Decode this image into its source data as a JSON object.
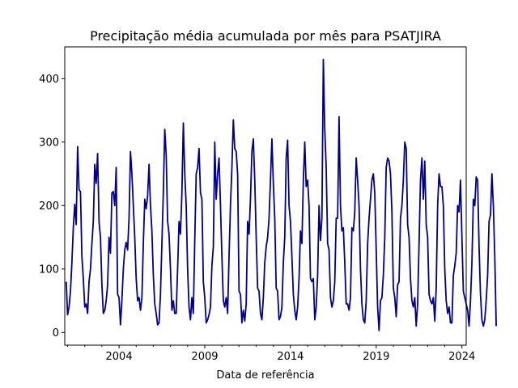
{
  "chart_data": {
    "type": "line",
    "title": "Precipitação média acumulada por mês para PSATJIRA",
    "xlabel": "Data de referência",
    "ylabel": "",
    "x_start": "2000-12",
    "x_end": "2024-03",
    "xlim": [
      "2000-11",
      "2024-04"
    ],
    "ylim": [
      -20,
      450
    ],
    "x_ticks": [
      {
        "date": "2004-01",
        "label": "2004"
      },
      {
        "date": "2009-01",
        "label": "2009"
      },
      {
        "date": "2014-01",
        "label": "2014"
      },
      {
        "date": "2019-01",
        "label": "2019"
      },
      {
        "date": "2024-01",
        "label": "2024"
      }
    ],
    "y_ticks": [
      0,
      100,
      200,
      300,
      400
    ],
    "legend": "none",
    "grid": false,
    "line_color": "#00008b",
    "series": [
      {
        "values": [
          80,
          28,
          40,
          65,
          110,
          165,
          202,
          170,
          293,
          225,
          222,
          120,
          85,
          40,
          45,
          30,
          80,
          100,
          140,
          175,
          265,
          235,
          282,
          175,
          150,
          75,
          30,
          35,
          50,
          75,
          150,
          125,
          220,
          222,
          200,
          260,
          60,
          55,
          12,
          50,
          100,
          130,
          142,
          130,
          180,
          285,
          250,
          200,
          150,
          85,
          50,
          55,
          35,
          55,
          140,
          210,
          195,
          215,
          265,
          200,
          160,
          90,
          45,
          30,
          12,
          15,
          60,
          140,
          220,
          320,
          280,
          175,
          155,
          100,
          35,
          50,
          30,
          30,
          100,
          175,
          155,
          220,
          330,
          250,
          200,
          100,
          40,
          20,
          55,
          30,
          145,
          250,
          260,
          290,
          220,
          210,
          80,
          55,
          15,
          20,
          28,
          40,
          105,
          135,
          300,
          210,
          250,
          275,
          200,
          120,
          50,
          40,
          55,
          30,
          120,
          200,
          260,
          335,
          290,
          285,
          250,
          65,
          60,
          15,
          35,
          18,
          45,
          175,
          155,
          210,
          285,
          305,
          240,
          150,
          70,
          65,
          30,
          20,
          55,
          110,
          135,
          150,
          180,
          240,
          305,
          235,
          180,
          70,
          65,
          20,
          25,
          40,
          110,
          150,
          275,
          303,
          200,
          175,
          120,
          60,
          35,
          20,
          40,
          85,
          160,
          140,
          240,
          300,
          230,
          240,
          200,
          85,
          80,
          85,
          20,
          40,
          90,
          200,
          145,
          180,
          430,
          320,
          260,
          140,
          130,
          55,
          40,
          50,
          80,
          180,
          180,
          340,
          200,
          160,
          165,
          110,
          45,
          45,
          35,
          55,
          165,
          160,
          190,
          275,
          240,
          200,
          100,
          45,
          20,
          15,
          50,
          140,
          180,
          210,
          240,
          250,
          220,
          130,
          40,
          3,
          50,
          55,
          90,
          150,
          260,
          275,
          270,
          250,
          190,
          70,
          55,
          25,
          75,
          80,
          180,
          200,
          240,
          300,
          290,
          170,
          150,
          85,
          50,
          40,
          55,
          10,
          45,
          140,
          240,
          275,
          210,
          270,
          170,
          150,
          60,
          50,
          45,
          55,
          18,
          70,
          200,
          250,
          230,
          230,
          200,
          100,
          50,
          30,
          40,
          15,
          15,
          90,
          105,
          125,
          200,
          190,
          240,
          150,
          65,
          55,
          45,
          35,
          10,
          50,
          110,
          210,
          200,
          245,
          240,
          135,
          60,
          20,
          10,
          20,
          50,
          90,
          175,
          185,
          250,
          200,
          120,
          10
        ]
      }
    ]
  }
}
